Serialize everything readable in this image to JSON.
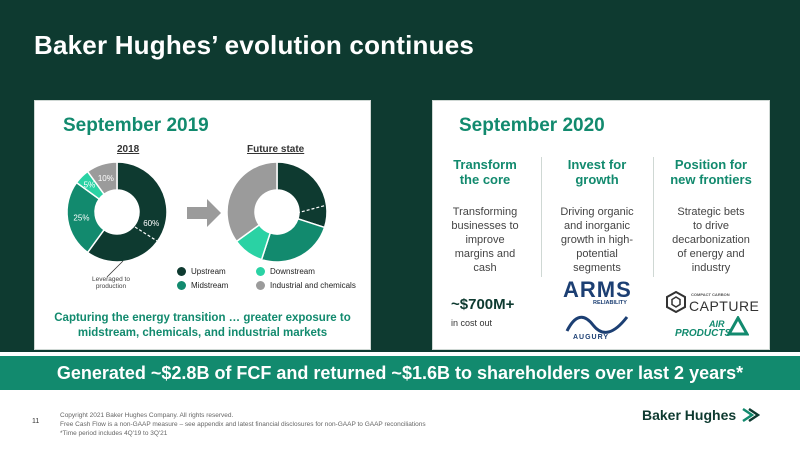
{
  "slide": {
    "title": "Baker Hughes’ evolution continues",
    "page_number": "11"
  },
  "left_panel": {
    "heading": "September 2019",
    "chart_2018_label": "2018",
    "chart_future_label": "Future state",
    "annotation": "Leveraged to production",
    "bottom_text_line1": "Capturing the energy transition … greater exposure to",
    "bottom_text_line2": "midstream, chemicals, and industrial markets",
    "legend": [
      {
        "label": "Upstream",
        "color": "#0e3a30"
      },
      {
        "label": "Downstream",
        "color": "#2ad2a4"
      },
      {
        "label": "Midstream",
        "color": "#128a6e"
      },
      {
        "label": "Industrial and chemicals",
        "color": "#9b9b9b"
      }
    ]
  },
  "chart_data": [
    {
      "type": "pie",
      "title": "2018",
      "categories": [
        "Upstream",
        "Midstream",
        "Downstream",
        "Industrial and chemicals"
      ],
      "values": [
        60,
        25,
        5,
        10
      ],
      "labels": [
        "60%",
        "25%",
        "5%",
        "10%"
      ]
    },
    {
      "type": "pie",
      "title": "Future state",
      "categories": [
        "Upstream",
        "Midstream",
        "Downstream",
        "Industrial and chemicals"
      ],
      "values": [
        30,
        25,
        10,
        35
      ]
    }
  ],
  "right_panel": {
    "heading": "September 2020",
    "columns": [
      {
        "head1": "Transform",
        "head2": "the core",
        "body": [
          "Transforming",
          "businesses to",
          "improve",
          "margins and",
          "cash"
        ]
      },
      {
        "head1": "Invest for",
        "head2": "growth",
        "body": [
          "Driving organic",
          "and inorganic",
          "growth in high-",
          "potential",
          "segments"
        ]
      },
      {
        "head1": "Position for",
        "head2": "new frontiers",
        "body": [
          "Strategic bets",
          "to drive",
          "decarbonization",
          "of energy and",
          "industry"
        ]
      }
    ],
    "stat_value": "~$700M+",
    "stat_caption": "in cost out",
    "logos": {
      "arms": "ARMS",
      "arms_sub": "RELIABILITY",
      "augury": "AUGURY",
      "capture_small": "COMPACT CARBON",
      "capture": "CAPTURE",
      "air_products_1": "AIR",
      "air_products_2": "PRODUCTS"
    }
  },
  "banner": "Generated ~$2.8B of FCF and returned ~$1.6B to shareholders over last 2 years*",
  "footnotes": [
    "Copyright 2021 Baker Hughes Company. All rights reserved.",
    "Free Cash Flow is a non-GAAP measure – see appendix and latest financial disclosures for non-GAAP to GAAP reconciliations",
    "*Time period includes 4Q'19 to 3Q'21"
  ],
  "footer_logo": "Baker Hughes",
  "colors": {
    "dark_green": "#0e3a30",
    "accent_green": "#128a6e",
    "light_green": "#2ad2a4",
    "gray": "#9b9b9b"
  }
}
